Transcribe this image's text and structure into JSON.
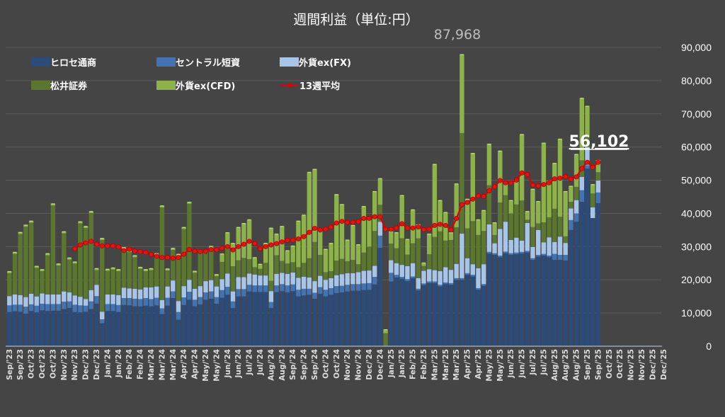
{
  "chart_data": {
    "type": "bar",
    "stacked": true,
    "title": "週間利益（単位:円）",
    "xlabel": "",
    "ylabel": "",
    "ylim": [
      0,
      90000
    ],
    "yticks": [
      "0",
      "10,000",
      "20,000",
      "30,000",
      "40,000",
      "50,000",
      "60,000",
      "70,000",
      "80,000",
      "90,000"
    ],
    "y_axis_side": "right",
    "grid": true,
    "legend_position": "top-left",
    "x_tick_labels": [
      "Sep/'23",
      "Sep/'23",
      "Oct/'23",
      "Oct/'23",
      "Oct/'23",
      "Nov/'23",
      "Nov/'23",
      "Dec/'23",
      "Dec/'23",
      "Jan/'24",
      "Jan/'24",
      "Feb/'24",
      "Feb/'24",
      "Mar/'24",
      "Mar/'24",
      "Mar/'24",
      "Apr/'24",
      "Apr/'24",
      "May/'24",
      "May/'24",
      "Jun/'24",
      "Jun/'24",
      "Jul/'24",
      "Jul/'24",
      "Aug/'24",
      "Aug/'24",
      "Sep/'24",
      "Sep/'24",
      "Sep/'24",
      "Oct/'24",
      "Oct/'24",
      "Nov/'24",
      "Nov/'24",
      "Dec/'24",
      "Dec/'24",
      "Jan/'25",
      "Jan/'25",
      "Feb/'25",
      "Feb/'25",
      "Mar/'25",
      "Mar/'25",
      "Mar/'25",
      "Apr/'25",
      "Apr/'25",
      "May/'25",
      "May/'25",
      "Jun/'25",
      "Jun/'25",
      "Jul/'25",
      "Jul/'25",
      "Aug/'25",
      "Aug/'25",
      "Aug/'25",
      "Sep/'25",
      "Sep/'25",
      "Oct/'25",
      "Oct/'25",
      "Nov/'25",
      "Nov/'25",
      "Dec/'25",
      "Dec/'25"
    ],
    "series": [
      {
        "name": "ヒロセ通商",
        "color": "#2c4b78",
        "values": [
          10300,
          10500,
          10400,
          9800,
          10600,
          10200,
          10800,
          10600,
          10700,
          10700,
          11200,
          11500,
          10300,
          10200,
          10400,
          11200,
          12800,
          6900,
          10600,
          10600,
          10300,
          12400,
          12300,
          12000,
          12000,
          12200,
          12000,
          12300,
          9700,
          12200,
          14500,
          8000,
          12400,
          14000,
          12000,
          12600,
          14000,
          14300,
          12800,
          14600,
          15500,
          11500,
          15000,
          15000,
          16500,
          16300,
          16300,
          16300,
          11500,
          16300,
          16600,
          16200,
          16600,
          15000,
          15300,
          15500,
          14300,
          15800,
          15000,
          15500,
          16000,
          16200,
          16500,
          16700,
          16700,
          16900,
          17000,
          18600,
          29600,
          0,
          19500,
          20700,
          20300,
          19600,
          20500,
          16800,
          18400,
          19000,
          19000,
          18000,
          18700,
          18500,
          20000,
          20000,
          21500,
          21000,
          17000,
          18200,
          27900,
          27500,
          26800,
          28000,
          27500,
          27700,
          27900,
          28200,
          26000,
          27000,
          27300,
          26800,
          26000,
          26000,
          25800,
          35000,
          37500,
          43500,
          53500,
          38600,
          43100
        ]
      },
      {
        "name": "セントラル短資",
        "color": "#4373b0",
        "values": [
          2000,
          2000,
          2100,
          2100,
          2000,
          2000,
          2000,
          2100,
          2000,
          2000,
          2200,
          2000,
          2200,
          2100,
          1800,
          2300,
          2300,
          1200,
          2100,
          2100,
          2100,
          2100,
          2200,
          2300,
          2200,
          2300,
          2200,
          2300,
          1700,
          2400,
          2000,
          2300,
          2300,
          2400,
          2000,
          2200,
          2200,
          2200,
          2000,
          2300,
          2400,
          2000,
          2200,
          2200,
          2000,
          2000,
          2000,
          2000,
          1800,
          2000,
          2100,
          2100,
          2000,
          2000,
          2000,
          1800,
          1800,
          2000,
          2000,
          2000,
          2100,
          2000,
          2000,
          2000,
          2000,
          2000,
          2000,
          2300,
          3700,
          0,
          2600,
          800,
          600,
          600,
          500,
          500,
          500,
          500,
          500,
          500,
          500,
          500,
          500,
          500,
          500,
          500,
          500,
          500,
          500,
          500,
          500,
          500,
          500,
          500,
          500,
          500,
          500,
          500,
          500,
          500,
          1800,
          1500,
          1700,
          3000,
          2500,
          3500,
          1000,
          0,
          3200
        ]
      },
      {
        "name": "外貨ex(FX)",
        "color": "#a8c5e8",
        "values": [
          2800,
          3100,
          2900,
          2900,
          3200,
          2800,
          3100,
          2900,
          2900,
          2900,
          3100,
          2700,
          2800,
          2600,
          2000,
          3400,
          3400,
          2300,
          2900,
          2900,
          3000,
          3100,
          2900,
          3000,
          2900,
          3200,
          3500,
          3400,
          2500,
          3400,
          3300,
          3300,
          3400,
          3600,
          3300,
          3300,
          3400,
          3400,
          3200,
          3300,
          4000,
          3000,
          3600,
          3600,
          3400,
          3300,
          3000,
          3000,
          3300,
          3500,
          3400,
          3500,
          3600,
          3600,
          3600,
          3400,
          3500,
          3400,
          3000,
          3000,
          3300,
          3500,
          3500,
          3300,
          3600,
          3800,
          3800,
          3300,
          4200,
          0,
          3800,
          3500,
          3600,
          3900,
          4000,
          3200,
          3800,
          3700,
          3400,
          4100,
          4600,
          4000,
          4300,
          13400,
          4500,
          3200,
          6000,
          6000,
          8300,
          3000,
          8000,
          9000,
          4000,
          4500,
          3400,
          8400,
          3400,
          7500,
          3500,
          5500,
          3600,
          5500,
          3600,
          3500,
          4000,
          4000,
          5500,
          3200,
          3600
        ]
      },
      {
        "name": "松井証券",
        "color": "#5a762f",
        "values": [
          6900,
          12200,
          18400,
          21200,
          21400,
          8600,
          6700,
          11800,
          26800,
          8700,
          17500,
          9900,
          9600,
          22100,
          21400,
          23200,
          4400,
          21600,
          7100,
          7500,
          7200,
          11600,
          10900,
          9500,
          6200,
          4900,
          5200,
          9400,
          27900,
          4800,
          9200,
          13600,
          17200,
          22900,
          4800,
          10300,
          8600,
          8800,
          3100,
          5200,
          7400,
          7600,
          5100,
          5800,
          4300,
          2200,
          2000,
          3800,
          3100,
          5600,
          3600,
          3100,
          3100,
          3200,
          4200,
          5800,
          11800,
          6300,
          2300,
          2100,
          4400,
          4600,
          3600,
          4000,
          2400,
          5500,
          7200,
          10500,
          5100,
          3900,
          5000,
          4500,
          8000,
          3500,
          6000,
          12000,
          1500,
          4500,
          10000,
          12000,
          8000,
          9000,
          11000,
          30300,
          9000,
          13000,
          10000,
          10000,
          11800,
          2500,
          8000,
          8000,
          8000,
          10000,
          12100,
          1000,
          6000,
          2000,
          6000,
          6000,
          10000,
          6000,
          2000,
          2000,
          4000,
          5000,
          3000,
          4200,
          2500
        ]
      },
      {
        "name": "外貨ex(CFD)",
        "color": "#8db24a",
        "values": [
          600,
          600,
          600,
          600,
          600,
          600,
          600,
          600,
          600,
          600,
          600,
          600,
          600,
          600,
          600,
          600,
          600,
          600,
          600,
          600,
          600,
          600,
          600,
          600,
          600,
          600,
          600,
          600,
          600,
          600,
          600,
          600,
          600,
          600,
          600,
          600,
          600,
          1500,
          600,
          2500,
          5000,
          7000,
          10000,
          10500,
          12000,
          3000,
          1500,
          6000,
          16000,
          6500,
          10500,
          4000,
          5000,
          14000,
          14500,
          26000,
          22000,
          8000,
          7000,
          8500,
          20000,
          16500,
          6500,
          10500,
          6000,
          14000,
          8000,
          12000,
          8000,
          1200,
          3700,
          4800,
          13000,
          4700,
          10200,
          4200,
          1000,
          6200,
          22000,
          9400,
          8600,
          2300,
          13200,
          23768,
          8900,
          20500,
          4700,
          6300,
          12500,
          3800,
          15600,
          3300,
          4000,
          7300,
          20000,
          2600,
          11500,
          6700,
          24000,
          11100,
          13800,
          23500,
          13600,
          4800,
          9900,
          18800,
          9400,
          2800,
          3702
        ]
      },
      {
        "name": "13週平均",
        "type": "line",
        "color": "#e00000",
        "start_week": 13,
        "values": [
          29300,
          30500,
          31100,
          31600,
          30700,
          30200,
          30200,
          30200,
          29900,
          28800,
          29200,
          28700,
          28400,
          28200,
          27600,
          27100,
          26700,
          26700,
          26500,
          26700,
          27700,
          29100,
          28600,
          28500,
          28600,
          29100,
          29000,
          29500,
          30000,
          29000,
          30000,
          30700,
          31600,
          30900,
          29300,
          30000,
          30500,
          30900,
          31400,
          31900,
          31900,
          32300,
          33000,
          34300,
          35500,
          35000,
          35200,
          35900,
          37100,
          37600,
          37300,
          37300,
          37500,
          38500,
          38500,
          39000,
          39000,
          35200,
          35200,
          35600,
          36900,
          35600,
          35600,
          35900,
          35100,
          35200,
          36400,
          36700,
          36400,
          35000,
          38500,
          42600,
          43300,
          44300,
          45300,
          45100,
          46800,
          48000,
          49900,
          49200,
          49200,
          50000,
          52200,
          51700,
          48500,
          48300,
          48700,
          49200,
          50400,
          50600,
          51100,
          50300,
          51000,
          53500,
          55400,
          53900,
          55400
        ]
      }
    ],
    "annotations": {
      "max_label": "87,968",
      "last_label": "56,102"
    }
  }
}
